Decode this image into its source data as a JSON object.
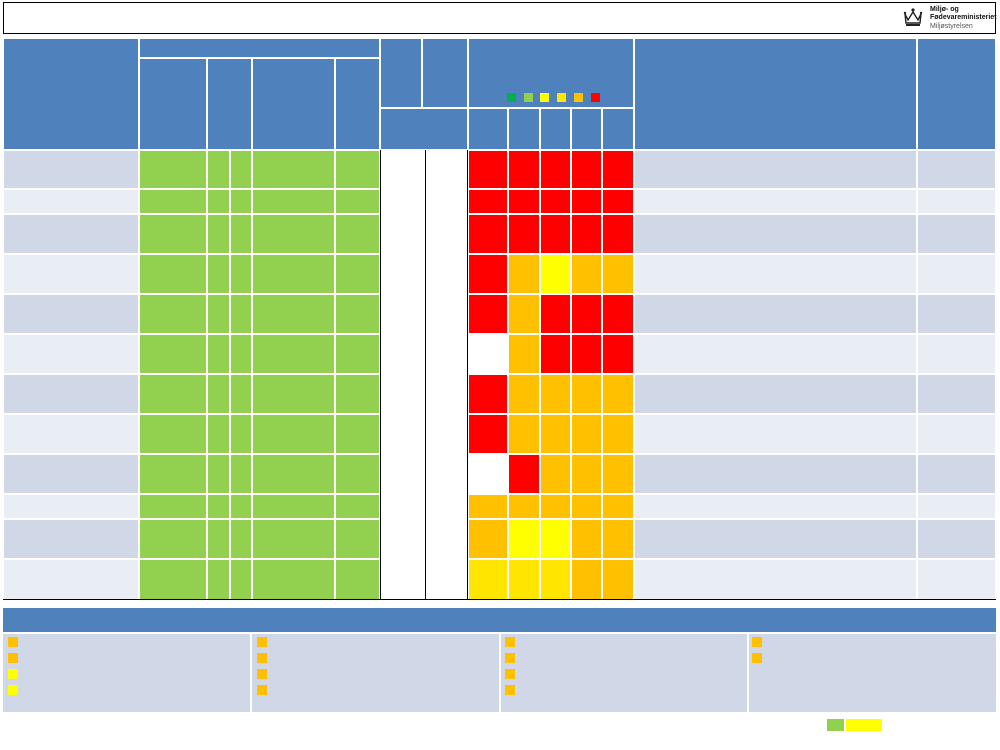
{
  "logo": {
    "icon": "crown-icon",
    "line1": "Miljø- og",
    "line2": "Fødevareministeriet",
    "line3": "Miljøstyrelsen"
  },
  "colors": {
    "header_blue": "#4f81bd",
    "row_band_dark": "#d0d8e8",
    "row_band_light": "#e9edf4",
    "green_fill": "#92d050",
    "white": "#ffffff",
    "status_red": "#ff0000",
    "status_orange": "#ffc000",
    "status_yellow": "#ffff00",
    "status_lightyellow": "#ffe600",
    "legend": [
      "#00b050",
      "#92d050",
      "#ffff00",
      "#ffe600",
      "#ffc000",
      "#ff0000"
    ]
  },
  "rows": [
    {
      "band": "dark",
      "status": [
        "red",
        "red",
        "red",
        "red",
        "red"
      ]
    },
    {
      "band": "light",
      "status": [
        "red",
        "red",
        "red",
        "red",
        "red"
      ]
    },
    {
      "band": "dark",
      "status": [
        "red",
        "red",
        "red",
        "red",
        "red"
      ]
    },
    {
      "band": "light",
      "status": [
        "red",
        "orange",
        "yellow",
        "orange",
        "orange"
      ]
    },
    {
      "band": "dark",
      "status": [
        "red",
        "orange",
        "red",
        "red",
        "red"
      ]
    },
    {
      "band": "light",
      "status": [
        "white",
        "orange",
        "red",
        "red",
        "red"
      ]
    },
    {
      "band": "dark",
      "status": [
        "red",
        "orange",
        "orange",
        "orange",
        "orange"
      ]
    },
    {
      "band": "light",
      "status": [
        "red",
        "orange",
        "orange",
        "orange",
        "orange"
      ]
    },
    {
      "band": "dark",
      "status": [
        "white",
        "red",
        "orange",
        "orange",
        "orange"
      ]
    },
    {
      "band": "light",
      "status": [
        "orange",
        "orange",
        "orange",
        "orange",
        "orange"
      ]
    },
    {
      "band": "dark",
      "status": [
        "orange",
        "yellow",
        "yellow",
        "orange",
        "orange"
      ]
    },
    {
      "band": "light",
      "status": [
        "lightyellow",
        "lightyellow",
        "lightyellow",
        "orange",
        "orange"
      ]
    }
  ],
  "footer": {
    "columns": [
      [
        "orange",
        "orange",
        "yellow",
        "yellow"
      ],
      [
        "orange",
        "orange",
        "orange",
        "orange"
      ],
      [
        "orange",
        "orange",
        "orange",
        "orange"
      ],
      [
        "orange",
        "orange"
      ]
    ],
    "bottom_swatches": [
      "green",
      "yellow"
    ]
  }
}
